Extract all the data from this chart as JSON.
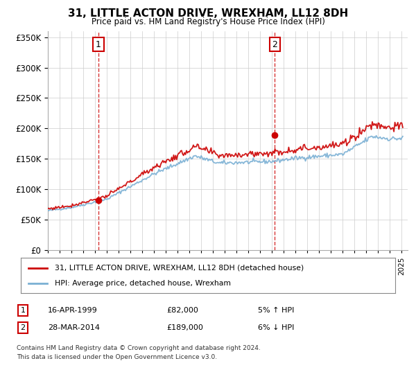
{
  "title": "31, LITTLE ACTON DRIVE, WREXHAM, LL12 8DH",
  "subtitle": "Price paid vs. HM Land Registry's House Price Index (HPI)",
  "legend_line1": "31, LITTLE ACTON DRIVE, WREXHAM, LL12 8DH (detached house)",
  "legend_line2": "HPI: Average price, detached house, Wrexham",
  "transaction1_date": "16-APR-1999",
  "transaction1_price": "£82,000",
  "transaction1_hpi": "5% ↑ HPI",
  "transaction1_year": 1999.29,
  "transaction1_value": 82000,
  "transaction2_date": "28-MAR-2014",
  "transaction2_price": "£189,000",
  "transaction2_hpi": "6% ↓ HPI",
  "transaction2_year": 2014.24,
  "transaction2_value": 189000,
  "sale_color": "#cc0000",
  "hpi_color": "#7ab0d4",
  "footnote_line1": "Contains HM Land Registry data © Crown copyright and database right 2024.",
  "footnote_line2": "This data is licensed under the Open Government Licence v3.0.",
  "ylim_min": 0,
  "ylim_max": 360000,
  "yticks": [
    0,
    50000,
    100000,
    150000,
    200000,
    250000,
    300000,
    350000
  ],
  "xlim_min": 1995,
  "xlim_max": 2025.5
}
